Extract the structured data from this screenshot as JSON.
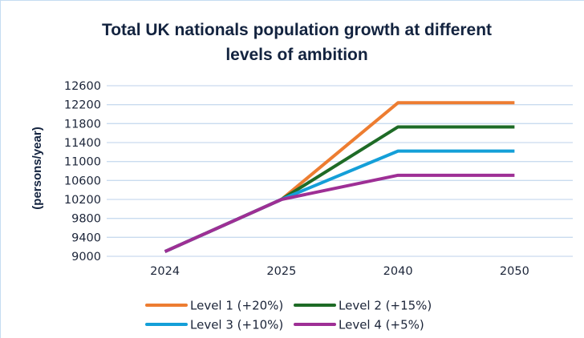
{
  "chart_data": {
    "type": "line",
    "title": "Total UK nationals population growth at different levels of ambition",
    "title_lines": [
      "Total UK nationals population growth at different",
      "levels of ambition"
    ],
    "xlabel": "",
    "ylabel": "(persons/year)",
    "categories": [
      "2024",
      "2025",
      "2040",
      "2050"
    ],
    "ylim": [
      9000,
      12600
    ],
    "yticks": [
      9000,
      9400,
      9800,
      10200,
      10600,
      11000,
      11400,
      11800,
      12200,
      12600
    ],
    "grid": true,
    "legend_position": "bottom",
    "series": [
      {
        "name": "Level 1 (+20%)",
        "color": "#ed7d31",
        "values": [
          9100,
          10200,
          12240,
          12240
        ]
      },
      {
        "name": "Level 2 (+15%)",
        "color": "#1e6b26",
        "values": [
          9100,
          10200,
          11730,
          11730
        ]
      },
      {
        "name": "Level 3 (+10%)",
        "color": "#149fd8",
        "values": [
          9100,
          10200,
          11220,
          11220
        ]
      },
      {
        "name": "Level 4 (+5%)",
        "color": "#9e2f95",
        "values": [
          9100,
          10200,
          10710,
          10710
        ]
      }
    ],
    "grid_color": "#c9dbef",
    "text_color": "#13233f"
  }
}
